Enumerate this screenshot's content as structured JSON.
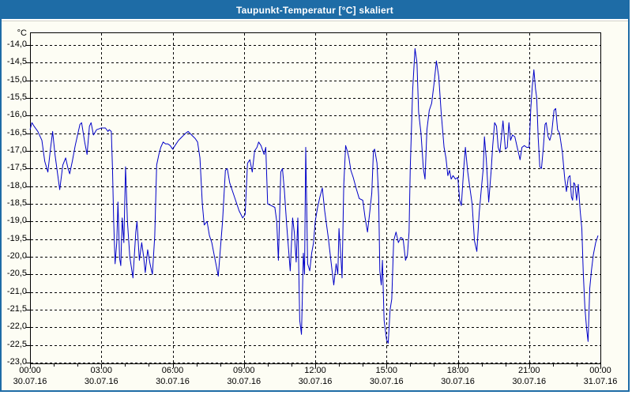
{
  "window": {
    "title": "Taupunkt-Temperatur [°C] skaliert"
  },
  "colors": {
    "titlebar": "#1e6ca6",
    "window_border": "#1e6ca6",
    "background": "#fdfdf4",
    "grid": "#000000",
    "line": "#0000c8",
    "text": "#000000"
  },
  "chart_data": {
    "type": "line",
    "title": "Taupunkt-Temperatur [°C] skaliert",
    "y_unit_label": "°C",
    "ylim": [
      -23.0,
      -13.6
    ],
    "xlim_hours": [
      0,
      24
    ],
    "grid": "dashed",
    "legend": "none",
    "y_ticks": [
      {
        "value": -14.0,
        "label": "-14,0"
      },
      {
        "value": -14.5,
        "label": "-14,5"
      },
      {
        "value": -15.0,
        "label": "-15,0"
      },
      {
        "value": -15.5,
        "label": "-15,5"
      },
      {
        "value": -16.0,
        "label": "-16,0"
      },
      {
        "value": -16.5,
        "label": "-16,5"
      },
      {
        "value": -17.0,
        "label": "-17,0"
      },
      {
        "value": -17.5,
        "label": "-17,5"
      },
      {
        "value": -18.0,
        "label": "-18,0"
      },
      {
        "value": -18.5,
        "label": "-18,5"
      },
      {
        "value": -19.0,
        "label": "-19,0"
      },
      {
        "value": -19.5,
        "label": "-19,5"
      },
      {
        "value": -20.0,
        "label": "-20,0"
      },
      {
        "value": -20.5,
        "label": "-20,5"
      },
      {
        "value": -21.0,
        "label": "-21,0"
      },
      {
        "value": -21.5,
        "label": "-21,5"
      },
      {
        "value": -22.0,
        "label": "-22,0"
      },
      {
        "value": -22.5,
        "label": "-22,5"
      },
      {
        "value": -23.0,
        "label": "-23,0"
      }
    ],
    "x_ticks": [
      {
        "hour": 0,
        "time": "00:00",
        "date": "30.07.16"
      },
      {
        "hour": 3,
        "time": "03:00",
        "date": "30.07.16"
      },
      {
        "hour": 6,
        "time": "06:00",
        "date": "30.07.16"
      },
      {
        "hour": 9,
        "time": "09:00",
        "date": "30.07.16"
      },
      {
        "hour": 12,
        "time": "12:00",
        "date": "30.07.16"
      },
      {
        "hour": 15,
        "time": "15:00",
        "date": "30.07.16"
      },
      {
        "hour": 18,
        "time": "18:00",
        "date": "30.07.16"
      },
      {
        "hour": 21,
        "time": "21:00",
        "date": "30.07.16"
      },
      {
        "hour": 24,
        "time": "00:00",
        "date": "31.07.16"
      }
    ],
    "minor_x_tick_every_hours": 1,
    "series": [
      {
        "name": "Taupunkt-Temperatur",
        "color": "#0000c8",
        "points": [
          [
            0.0,
            -16.4
          ],
          [
            0.08,
            -16.2
          ],
          [
            0.17,
            -16.3
          ],
          [
            0.33,
            -16.45
          ],
          [
            0.5,
            -16.7
          ],
          [
            0.62,
            -17.3
          ],
          [
            0.75,
            -17.6
          ],
          [
            0.85,
            -17.0
          ],
          [
            0.95,
            -16.45
          ],
          [
            1.05,
            -17.1
          ],
          [
            1.17,
            -17.7
          ],
          [
            1.25,
            -18.1
          ],
          [
            1.38,
            -17.4
          ],
          [
            1.5,
            -17.2
          ],
          [
            1.6,
            -17.5
          ],
          [
            1.67,
            -17.65
          ],
          [
            1.78,
            -17.3
          ],
          [
            1.9,
            -16.85
          ],
          [
            2.0,
            -16.55
          ],
          [
            2.1,
            -16.25
          ],
          [
            2.17,
            -16.2
          ],
          [
            2.3,
            -16.75
          ],
          [
            2.4,
            -17.1
          ],
          [
            2.5,
            -16.3
          ],
          [
            2.57,
            -16.2
          ],
          [
            2.67,
            -16.55
          ],
          [
            2.8,
            -16.4
          ],
          [
            3.0,
            -16.35
          ],
          [
            3.17,
            -16.35
          ],
          [
            3.28,
            -16.45
          ],
          [
            3.33,
            -16.4
          ],
          [
            3.42,
            -16.45
          ],
          [
            3.47,
            -17.5
          ],
          [
            3.52,
            -19.0
          ],
          [
            3.58,
            -20.2
          ],
          [
            3.65,
            -19.6
          ],
          [
            3.7,
            -18.45
          ],
          [
            3.77,
            -20.05
          ],
          [
            3.82,
            -20.25
          ],
          [
            3.88,
            -18.9
          ],
          [
            3.95,
            -19.6
          ],
          [
            4.02,
            -17.45
          ],
          [
            4.1,
            -19.0
          ],
          [
            4.2,
            -20.0
          ],
          [
            4.33,
            -20.6
          ],
          [
            4.45,
            -19.3
          ],
          [
            4.5,
            -19.0
          ],
          [
            4.6,
            -20.1
          ],
          [
            4.7,
            -19.6
          ],
          [
            4.78,
            -20.0
          ],
          [
            4.85,
            -20.45
          ],
          [
            4.95,
            -19.8
          ],
          [
            5.05,
            -20.2
          ],
          [
            5.15,
            -20.5
          ],
          [
            5.25,
            -19.4
          ],
          [
            5.33,
            -17.4
          ],
          [
            5.42,
            -17.1
          ],
          [
            5.5,
            -16.9
          ],
          [
            5.6,
            -16.75
          ],
          [
            5.7,
            -16.8
          ],
          [
            5.8,
            -16.8
          ],
          [
            5.9,
            -16.85
          ],
          [
            6.0,
            -16.95
          ],
          [
            6.1,
            -16.85
          ],
          [
            6.25,
            -16.7
          ],
          [
            6.4,
            -16.6
          ],
          [
            6.55,
            -16.5
          ],
          [
            6.65,
            -16.45
          ],
          [
            6.8,
            -16.55
          ],
          [
            6.95,
            -16.65
          ],
          [
            7.05,
            -16.75
          ],
          [
            7.15,
            -17.2
          ],
          [
            7.25,
            -18.5
          ],
          [
            7.33,
            -19.1
          ],
          [
            7.45,
            -19.0
          ],
          [
            7.55,
            -19.4
          ],
          [
            7.65,
            -19.6
          ],
          [
            7.75,
            -19.95
          ],
          [
            7.85,
            -20.3
          ],
          [
            7.92,
            -20.55
          ],
          [
            8.0,
            -19.85
          ],
          [
            8.1,
            -19.0
          ],
          [
            8.22,
            -17.55
          ],
          [
            8.3,
            -17.5
          ],
          [
            8.4,
            -17.9
          ],
          [
            8.5,
            -18.1
          ],
          [
            8.65,
            -18.4
          ],
          [
            8.8,
            -18.7
          ],
          [
            8.95,
            -18.9
          ],
          [
            9.05,
            -18.8
          ],
          [
            9.15,
            -17.35
          ],
          [
            9.25,
            -17.25
          ],
          [
            9.35,
            -17.6
          ],
          [
            9.45,
            -17.0
          ],
          [
            9.55,
            -16.9
          ],
          [
            9.62,
            -16.75
          ],
          [
            9.72,
            -16.85
          ],
          [
            9.85,
            -17.1
          ],
          [
            9.92,
            -16.9
          ],
          [
            10.0,
            -18.5
          ],
          [
            10.15,
            -18.55
          ],
          [
            10.3,
            -18.6
          ],
          [
            10.38,
            -19.0
          ],
          [
            10.45,
            -20.1
          ],
          [
            10.55,
            -17.6
          ],
          [
            10.62,
            -17.5
          ],
          [
            10.7,
            -18.1
          ],
          [
            10.8,
            -19.1
          ],
          [
            10.88,
            -19.8
          ],
          [
            10.95,
            -20.4
          ],
          [
            11.05,
            -18.9
          ],
          [
            11.12,
            -19.3
          ],
          [
            11.2,
            -20.15
          ],
          [
            11.27,
            -18.9
          ],
          [
            11.35,
            -21.8
          ],
          [
            11.42,
            -22.2
          ],
          [
            11.5,
            -19.9
          ],
          [
            11.55,
            -20.5
          ],
          [
            11.6,
            -16.9
          ],
          [
            11.68,
            -20.2
          ],
          [
            11.77,
            -20.4
          ],
          [
            11.85,
            -19.9
          ],
          [
            11.93,
            -19.6
          ],
          [
            12.0,
            -19.0
          ],
          [
            12.1,
            -18.6
          ],
          [
            12.2,
            -18.3
          ],
          [
            12.3,
            -18.05
          ],
          [
            12.4,
            -18.7
          ],
          [
            12.55,
            -19.45
          ],
          [
            12.7,
            -20.35
          ],
          [
            12.78,
            -20.8
          ],
          [
            12.88,
            -20.2
          ],
          [
            12.95,
            -20.5
          ],
          [
            13.0,
            -19.2
          ],
          [
            13.08,
            -20.0
          ],
          [
            13.13,
            -20.6
          ],
          [
            13.2,
            -18.0
          ],
          [
            13.28,
            -16.85
          ],
          [
            13.35,
            -17.0
          ],
          [
            13.42,
            -17.2
          ],
          [
            13.5,
            -17.55
          ],
          [
            13.6,
            -17.75
          ],
          [
            13.72,
            -18.05
          ],
          [
            13.85,
            -18.35
          ],
          [
            14.0,
            -18.4
          ],
          [
            14.1,
            -18.9
          ],
          [
            14.2,
            -19.3
          ],
          [
            14.3,
            -18.7
          ],
          [
            14.38,
            -18.2
          ],
          [
            14.45,
            -17.0
          ],
          [
            14.5,
            -16.95
          ],
          [
            14.6,
            -17.35
          ],
          [
            14.67,
            -18.3
          ],
          [
            14.72,
            -20.4
          ],
          [
            14.78,
            -20.8
          ],
          [
            14.83,
            -20.1
          ],
          [
            14.9,
            -21.8
          ],
          [
            15.0,
            -22.35
          ],
          [
            15.07,
            -22.45
          ],
          [
            15.15,
            -21.5
          ],
          [
            15.22,
            -21.2
          ],
          [
            15.3,
            -19.55
          ],
          [
            15.4,
            -19.3
          ],
          [
            15.5,
            -19.6
          ],
          [
            15.6,
            -19.45
          ],
          [
            15.7,
            -19.5
          ],
          [
            15.8,
            -20.1
          ],
          [
            15.88,
            -19.95
          ],
          [
            15.95,
            -19.3
          ],
          [
            16.0,
            -17.5
          ],
          [
            16.1,
            -15.3
          ],
          [
            16.2,
            -14.1
          ],
          [
            16.28,
            -14.5
          ],
          [
            16.35,
            -15.9
          ],
          [
            16.45,
            -16.5
          ],
          [
            16.55,
            -17.5
          ],
          [
            16.62,
            -17.8
          ],
          [
            16.7,
            -16.4
          ],
          [
            16.8,
            -15.85
          ],
          [
            16.9,
            -15.65
          ],
          [
            17.0,
            -15.1
          ],
          [
            17.1,
            -14.45
          ],
          [
            17.2,
            -14.9
          ],
          [
            17.3,
            -15.9
          ],
          [
            17.42,
            -16.9
          ],
          [
            17.5,
            -17.2
          ],
          [
            17.58,
            -17.7
          ],
          [
            17.65,
            -17.55
          ],
          [
            17.72,
            -17.8
          ],
          [
            17.8,
            -17.7
          ],
          [
            17.9,
            -17.8
          ],
          [
            18.0,
            -17.75
          ],
          [
            18.08,
            -18.4
          ],
          [
            18.15,
            -18.55
          ],
          [
            18.25,
            -17.5
          ],
          [
            18.32,
            -16.9
          ],
          [
            18.42,
            -17.6
          ],
          [
            18.5,
            -18.0
          ],
          [
            18.6,
            -18.5
          ],
          [
            18.7,
            -19.55
          ],
          [
            18.8,
            -19.85
          ],
          [
            18.9,
            -18.75
          ],
          [
            19.0,
            -18.0
          ],
          [
            19.07,
            -17.5
          ],
          [
            19.12,
            -16.6
          ],
          [
            19.2,
            -17.25
          ],
          [
            19.3,
            -18.45
          ],
          [
            19.4,
            -17.6
          ],
          [
            19.47,
            -16.85
          ],
          [
            19.55,
            -16.2
          ],
          [
            19.63,
            -16.3
          ],
          [
            19.7,
            -16.9
          ],
          [
            19.77,
            -17.05
          ],
          [
            19.85,
            -16.5
          ],
          [
            19.9,
            -16.15
          ],
          [
            20.0,
            -16.95
          ],
          [
            20.08,
            -16.9
          ],
          [
            20.15,
            -16.2
          ],
          [
            20.22,
            -16.7
          ],
          [
            20.3,
            -16.55
          ],
          [
            20.4,
            -16.6
          ],
          [
            20.5,
            -16.9
          ],
          [
            20.57,
            -17.1
          ],
          [
            20.62,
            -17.25
          ],
          [
            20.7,
            -16.9
          ],
          [
            20.8,
            -16.85
          ],
          [
            20.9,
            -16.9
          ],
          [
            21.0,
            -16.9
          ],
          [
            21.07,
            -15.8
          ],
          [
            21.13,
            -15.2
          ],
          [
            21.2,
            -14.7
          ],
          [
            21.27,
            -15.25
          ],
          [
            21.32,
            -15.5
          ],
          [
            21.38,
            -16.6
          ],
          [
            21.45,
            -17.45
          ],
          [
            21.52,
            -17.5
          ],
          [
            21.6,
            -16.9
          ],
          [
            21.67,
            -16.25
          ],
          [
            21.72,
            -16.2
          ],
          [
            21.8,
            -16.6
          ],
          [
            21.87,
            -16.7
          ],
          [
            21.95,
            -16.5
          ],
          [
            22.05,
            -15.85
          ],
          [
            22.12,
            -15.8
          ],
          [
            22.2,
            -16.4
          ],
          [
            22.28,
            -16.5
          ],
          [
            22.4,
            -17.05
          ],
          [
            22.5,
            -17.8
          ],
          [
            22.57,
            -18.15
          ],
          [
            22.65,
            -17.75
          ],
          [
            22.72,
            -17.7
          ],
          [
            22.78,
            -18.3
          ],
          [
            22.83,
            -18.4
          ],
          [
            22.88,
            -17.9
          ],
          [
            22.93,
            -17.95
          ],
          [
            23.0,
            -18.4
          ],
          [
            23.07,
            -17.95
          ],
          [
            23.15,
            -18.7
          ],
          [
            23.22,
            -19.2
          ],
          [
            23.28,
            -20.45
          ],
          [
            23.35,
            -21.45
          ],
          [
            23.42,
            -22.05
          ],
          [
            23.48,
            -22.4
          ],
          [
            23.55,
            -20.9
          ],
          [
            23.62,
            -20.4
          ],
          [
            23.7,
            -19.95
          ],
          [
            23.8,
            -19.6
          ],
          [
            23.9,
            -19.4
          ]
        ]
      }
    ]
  }
}
